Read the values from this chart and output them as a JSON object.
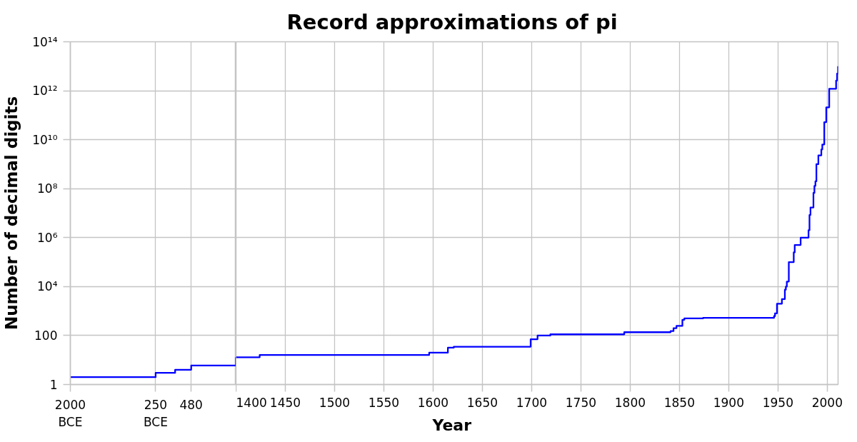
{
  "chart_data": [
    {
      "type": "step",
      "ylabel": "Number of decimal digits",
      "x": [
        -2000,
        -250,
        150,
        480,
        1400
      ],
      "series": [
        {
          "color": "#0000ff",
          "values": [
            2,
            3,
            4,
            6,
            13
          ]
        }
      ],
      "xlim": [
        -2000,
        1400
      ],
      "xticks": [
        {
          "value": -2000,
          "label": "2000\nBCE"
        },
        {
          "value": -250,
          "label": "250\nBCE"
        },
        480
      ],
      "ylim": [
        1,
        100000000000000
      ],
      "yticks": [
        1,
        100,
        {
          "value": 10000,
          "label": "10⁴"
        },
        {
          "value": 1000000,
          "label": "10⁶"
        },
        {
          "value": 100000000,
          "label": "10⁸"
        },
        {
          "value": 10000000000,
          "label": "10¹⁰"
        },
        {
          "value": 1000000000000,
          "label": "10¹²"
        },
        {
          "value": 100000000000000,
          "label": "10¹⁴"
        }
      ],
      "log": true,
      "grid": true
    },
    {
      "type": "step",
      "title": "Record approximations of pi",
      "xlabel": "Year",
      "x": [
        1400,
        1424,
        1596,
        1615,
        1621,
        1699,
        1706,
        1719,
        1794,
        1841,
        1844,
        1847,
        1853,
        1855,
        1874,
        1946,
        1947,
        1949,
        1954,
        1957,
        1958,
        1959,
        1961,
        1966,
        1967,
        1973,
        1981,
        1982,
        1983,
        1986,
        1987,
        1988,
        1989,
        1991,
        1994,
        1995,
        1997,
        1999,
        2002,
        2009,
        2010,
        2011
      ],
      "series": [
        {
          "color": "#0000ff",
          "values": [
            13,
            16,
            20,
            32,
            35,
            71,
            100,
            112,
            137,
            152,
            200,
            248,
            440,
            500,
            527,
            620,
            810,
            2000,
            3100,
            7500,
            10000,
            16000,
            100000,
            250000,
            500000,
            1000000,
            2000000,
            8400000,
            17000000,
            67000000,
            130000000,
            200000000,
            1000000000,
            2300000000,
            4000000000,
            6400000000,
            52000000000,
            210000000000,
            1200000000000,
            2600000000000,
            5000000000000,
            10000000000000
          ]
        }
      ],
      "xlim": [
        1400,
        2011
      ],
      "xticks": [
        1400,
        1450,
        1500,
        1550,
        1600,
        1650,
        1700,
        1750,
        1800,
        1850,
        1900,
        1950,
        2000
      ],
      "ylim": [
        1,
        100000000000000
      ],
      "log": true,
      "grid": true,
      "tick_labels": "x"
    }
  ]
}
